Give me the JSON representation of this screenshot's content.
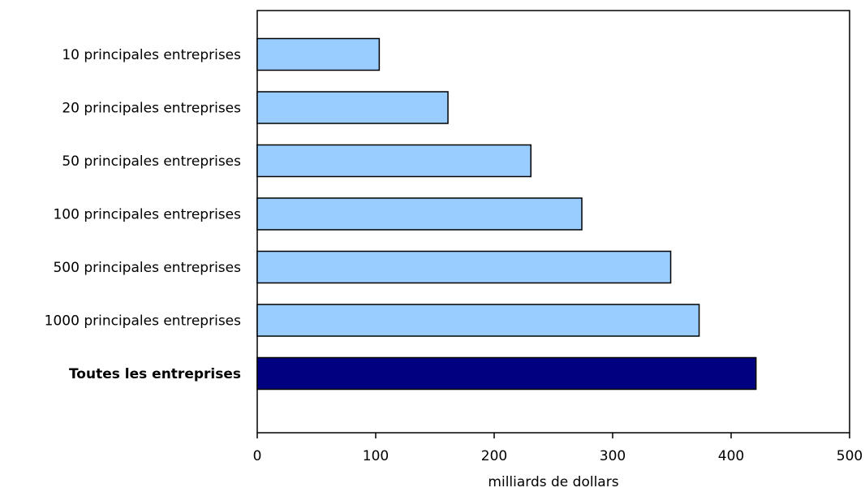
{
  "chart_data": {
    "type": "bar",
    "orientation": "horizontal",
    "title": "",
    "xlabel": "milliards de dollars",
    "ylabel": "",
    "xlim": [
      0,
      500
    ],
    "x_ticks": [
      "0",
      "100",
      "200",
      "300",
      "400",
      "500"
    ],
    "grid": false,
    "legend": "none",
    "categories": [
      "10 principales entreprises",
      "20 principales entreprises",
      "50 principales entreprises",
      "100 principales entreprises",
      "500 principales entreprises",
      "1000 principales entreprises",
      "Toutes les entreprises"
    ],
    "values": [
      103,
      161,
      231,
      274,
      349,
      373,
      421
    ],
    "bold_categories": [
      "Toutes les entreprises"
    ],
    "colors": {
      "bar": "#99ccff",
      "highlight_bar": "#000080",
      "bar_stroke": "#000000",
      "axis": "#000000"
    }
  }
}
